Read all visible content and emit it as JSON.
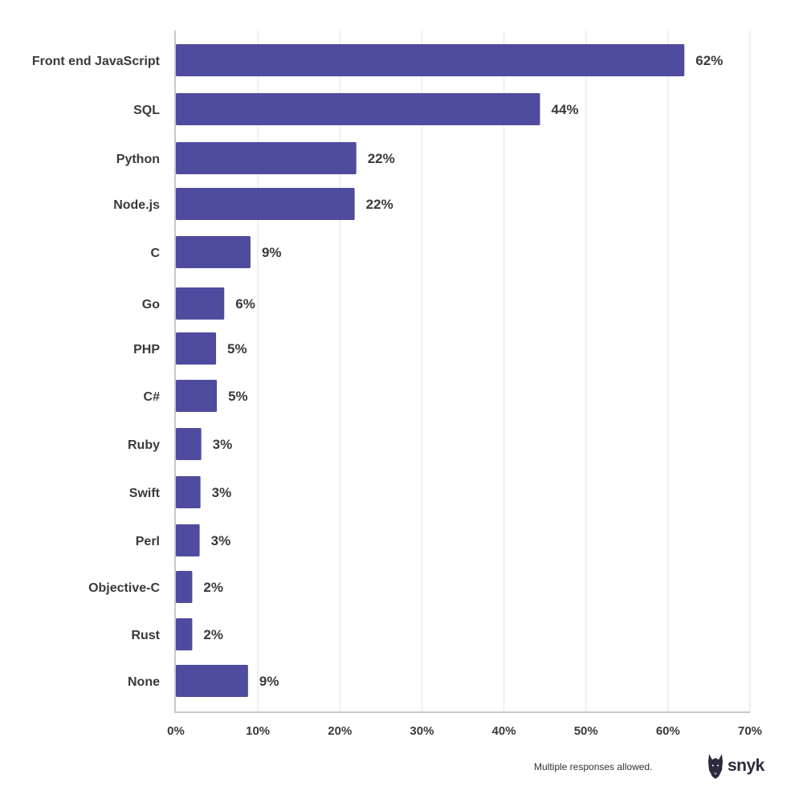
{
  "chart_data": {
    "type": "bar",
    "orientation": "horizontal",
    "categories": [
      "Front end JavaScript",
      "SQL",
      "Python",
      "Node.js",
      "C",
      "Go",
      "PHP",
      "C#",
      "Ruby",
      "Swift",
      "Perl",
      "Objective-C",
      "Rust",
      "None"
    ],
    "values": [
      62,
      44,
      22,
      22,
      9,
      6,
      5,
      5,
      3,
      3,
      3,
      2,
      2,
      9
    ],
    "value_labels": [
      "62%",
      "44%",
      "22%",
      "22%",
      "9%",
      "6%",
      "5%",
      "5%",
      "3%",
      "3%",
      "3%",
      "2%",
      "2%",
      "9%"
    ],
    "exact_values": [
      62.0,
      44.4,
      22.0,
      21.8,
      9.1,
      5.9,
      4.9,
      5.0,
      3.1,
      3.0,
      2.9,
      2.0,
      2.0,
      8.8
    ],
    "xlim": [
      0,
      70
    ],
    "xticks": [
      0,
      10,
      20,
      30,
      40,
      50,
      60,
      70
    ],
    "xtick_labels": [
      "0%",
      "10%",
      "20%",
      "30%",
      "40%",
      "50%",
      "60%",
      "70%"
    ],
    "grid": true,
    "bar_color": "#4f4b9e",
    "title": "",
    "xlabel": "",
    "ylabel": ""
  },
  "footnote": "Multiple responses allowed.",
  "brand": {
    "name": "snyk",
    "icon": "snyk-doberman-icon",
    "color": "#2b2a3e"
  },
  "colors": {
    "grid": "#ececec",
    "axis": "#c8c8c8",
    "text": "#3a3a3a"
  }
}
